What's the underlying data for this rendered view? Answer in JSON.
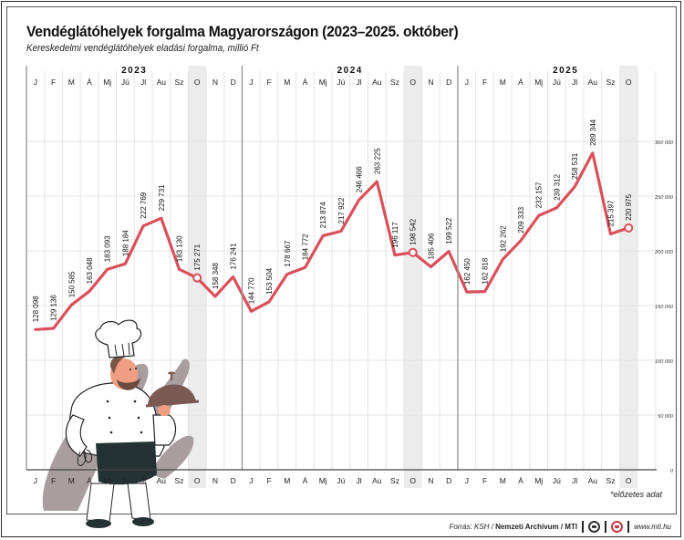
{
  "header": {
    "title": "Vendéglátóhelyek forgalma Magyarországon (2023–2025. október)",
    "subtitle": "Kereskedelmi vendéglátóhelyek eladási forgalma, millió Ft"
  },
  "colors": {
    "line": "#d9505c",
    "highlight_column": "#ececec",
    "grid": "#e4e4e4",
    "year_divider": "#9a9a9a",
    "text": "#111111"
  },
  "footnote": "*előzetes adat",
  "footer": {
    "source_prefix": "Forrás: KSH / ",
    "source_bold": "Nemzeti Archívum / MTI",
    "url": "www.mti.hu"
  },
  "chart_data": {
    "type": "line",
    "title": "Vendéglátóhelyek forgalma Magyarországon (2023–2025. október)",
    "subtitle": "Kereskedelmi vendéglátóhelyek eladási forgalma, millió Ft",
    "xlabel": "",
    "ylabel": "millió Ft",
    "ylim": [
      0,
      300000
    ],
    "y_ticks": [
      0,
      50000,
      100000,
      150000,
      200000,
      250000,
      300000
    ],
    "y_tick_labels": [
      "0",
      "50 000",
      "100 000",
      "150 000",
      "200 000",
      "250 000",
      "300 000"
    ],
    "years": [
      "2023",
      "2024",
      "2025"
    ],
    "month_labels": [
      "J",
      "F",
      "M",
      "Á",
      "Mj",
      "Jú",
      "Jl",
      "Au",
      "Sz",
      "O",
      "N",
      "D"
    ],
    "grid": true,
    "legend": null,
    "highlighted_months": [
      "2023-O",
      "2024-O",
      "2025-O"
    ],
    "series": [
      {
        "name": "Eladási forgalma (millió Ft)",
        "x": [
          "2023-J",
          "2023-F",
          "2023-M",
          "2023-Á",
          "2023-Mj",
          "2023-Jú",
          "2023-Jl",
          "2023-Au",
          "2023-Sz",
          "2023-O",
          "2023-N",
          "2023-D",
          "2024-J",
          "2024-F",
          "2024-M",
          "2024-Á",
          "2024-Mj",
          "2024-Jú",
          "2024-Jl",
          "2024-Au",
          "2024-Sz",
          "2024-O",
          "2024-N",
          "2024-D",
          "2025-J",
          "2025-F",
          "2025-M",
          "2025-Á",
          "2025-Mj",
          "2025-Jú",
          "2025-Jl",
          "2025-Au",
          "2025-Sz",
          "2025-O"
        ],
        "values": [
          128098,
          129136,
          150585,
          163048,
          183093,
          188184,
          222769,
          229731,
          183130,
          175271,
          158348,
          176241,
          144770,
          153504,
          178667,
          184772,
          213874,
          217922,
          246466,
          263225,
          196117,
          198542,
          185406,
          199522,
          162450,
          162818,
          192262,
          209333,
          232157,
          239312,
          258531,
          289344,
          215397,
          220975
        ],
        "labels": [
          "128 098",
          "129 136",
          "150 585",
          "163 048",
          "183 093",
          "188 184",
          "222 769",
          "229 731",
          "183 130",
          "175 271",
          "158 348",
          "176 241",
          "144 770",
          "153 504",
          "178 667",
          "184 772",
          "213 874",
          "217 922",
          "246 466",
          "263 225",
          "196 117",
          "198 542",
          "185 406",
          "199 522",
          "162 450",
          "162 818",
          "192 262",
          "209 333",
          "232 157",
          "239 312",
          "258 531",
          "289 344",
          "215 397",
          "220 975"
        ],
        "marked_points": [
          9,
          21,
          33
        ]
      }
    ],
    "annotations": [
      "*előzetes adat"
    ]
  }
}
